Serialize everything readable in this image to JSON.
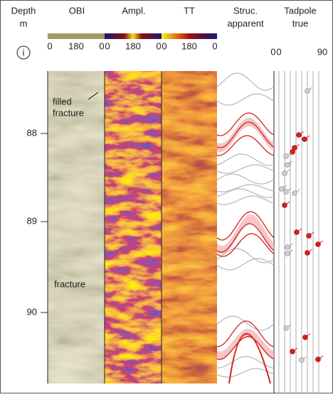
{
  "headers": {
    "depth": {
      "title": "Depth",
      "unit": "m"
    },
    "obi": {
      "title": "OBI"
    },
    "ampl": {
      "title": "Ampl."
    },
    "tt": {
      "title": "TT"
    },
    "struc": {
      "title": "Struc.",
      "sub": "apparent"
    },
    "tadpole": {
      "title": "Tadpole",
      "sub": "true"
    }
  },
  "scales": {
    "obi": [
      "0",
      "180",
      "0"
    ],
    "ampl": [
      "0",
      "180",
      "0"
    ],
    "tt": [
      "0",
      "180",
      "0"
    ],
    "struc": [
      "0"
    ],
    "tadpole": [
      "0",
      "90"
    ]
  },
  "info_icon": "i",
  "depth_ticks": [
    "88",
    "89",
    "90"
  ],
  "annotations": {
    "filled_fracture": [
      "filled",
      "fracture"
    ],
    "fracture": "fracture"
  }
}
